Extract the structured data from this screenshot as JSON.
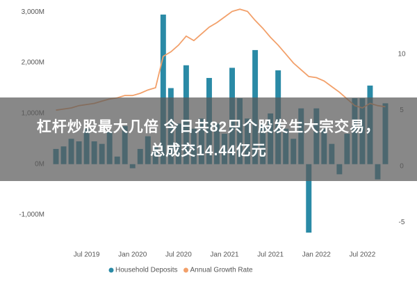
{
  "chart_data": {
    "type": "bar-line",
    "categories": [
      null,
      null,
      null,
      null,
      "Jul 2019",
      null,
      null,
      null,
      null,
      null,
      "Jan 2020",
      null,
      null,
      null,
      null,
      null,
      "Jul 2020",
      null,
      null,
      null,
      null,
      null,
      "Jan 2021",
      null,
      null,
      null,
      null,
      null,
      "Jul 2021",
      null,
      null,
      null,
      null,
      null,
      "Jan 2022",
      null,
      null,
      null,
      null,
      null,
      "Jul 2022",
      null,
      null,
      null
    ],
    "series": [
      {
        "name": "Household Deposits",
        "color": "#2a8aa6",
        "kind": "bar",
        "values": [
          300,
          350,
          500,
          450,
          700,
          450,
          400,
          650,
          150,
          750,
          -80,
          300,
          550,
          350,
          2950,
          1500,
          800,
          1950,
          700,
          900,
          1700,
          800,
          600,
          1900,
          1300,
          900,
          2250,
          800,
          1000,
          1850,
          700,
          500,
          1100,
          -1350,
          1100,
          700,
          400,
          -200,
          600,
          1300,
          1300,
          1550,
          -300,
          1200
        ]
      },
      {
        "name": "Annual Growth Rate",
        "color": "#f2a06a",
        "kind": "line",
        "axis": "y2",
        "values": [
          5.0,
          5.1,
          5.2,
          5.4,
          5.5,
          5.6,
          5.8,
          6.0,
          6.1,
          6.3,
          6.3,
          6.5,
          6.8,
          7.0,
          9.8,
          10.2,
          10.8,
          11.6,
          11.2,
          11.8,
          12.4,
          12.8,
          13.3,
          13.8,
          14.0,
          13.8,
          13.0,
          12.3,
          11.5,
          10.8,
          10.0,
          9.2,
          8.6,
          8.0,
          7.9,
          7.6,
          7.1,
          6.6,
          6.0,
          5.4,
          5.2,
          5.6,
          5.4,
          5.3
        ]
      }
    ],
    "ylim": [
      -1500,
      3100
    ],
    "yticks": [
      {
        "value": -1000,
        "label": "-1,000M"
      },
      {
        "value": 0,
        "label": "0M"
      },
      {
        "value": 1000,
        "label": "1,000M"
      },
      {
        "value": 2000,
        "label": "2,000M"
      },
      {
        "value": 3000,
        "label": "3,000M"
      }
    ],
    "y2lim": [
      -6.6,
      14.2
    ],
    "y2ticks": [
      -5,
      0,
      5,
      10
    ],
    "grid": false,
    "legend": "bottom"
  },
  "banner": {
    "lines": [
      "杠杆炒股最大几倍 今日共82只个股发生大宗交易，",
      "总成交14.44亿元"
    ]
  }
}
